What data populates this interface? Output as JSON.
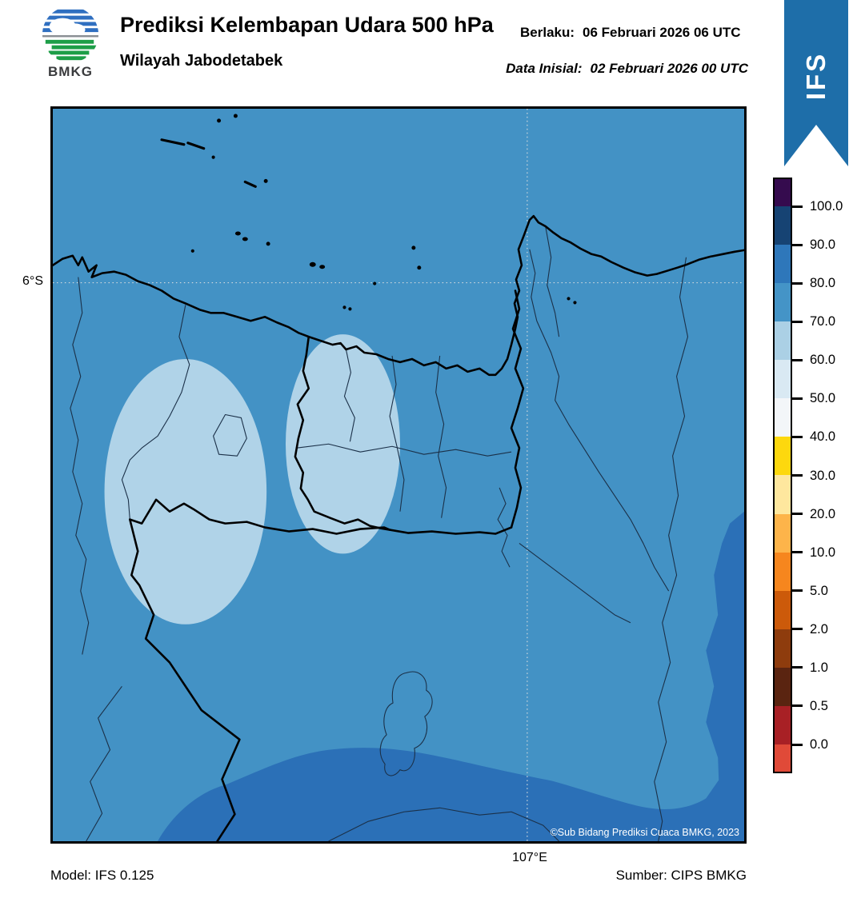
{
  "header": {
    "logo_label": "BMKG",
    "title": "Prediksi Kelembapan Udara 500 hPa",
    "subtitle": "Wilayah Jabodetabek",
    "valid_label": "Berlaku:",
    "valid_value": "06 Februari 2026 06 UTC",
    "init_label": "Data Inisial:",
    "init_value": "02 Februari 2026 00 UTC",
    "model_badge": "IFS"
  },
  "map": {
    "lat_tick_label": "6°S",
    "lon_tick_label": "107°E",
    "copyright": "©Sub Bidang Prediksi Cuaca BMKG, 2023"
  },
  "colorbar": {
    "tick_labels_top_to_bottom": [
      "100.0",
      "90.0",
      "80.0",
      "70.0",
      "60.0",
      "50.0",
      "40.0",
      "30.0",
      "20.0",
      "10.0",
      "5.0",
      "2.0",
      "1.0",
      "0.5",
      "0.0"
    ],
    "segment_colors_top_to_bottom": [
      "#350b4e",
      "#164373",
      "#2e77ba",
      "#4494c7",
      "#abd0e5",
      "#d9e9f3",
      "#f3f6f9",
      "#fdd80e",
      "#fee79e",
      "#fdb44a",
      "#f6861e",
      "#cc5a0a",
      "#8e3c0d",
      "#5a2410",
      "#a82025",
      "#e04a38"
    ]
  },
  "footer": {
    "model_text": "Model: IFS 0.125",
    "source_text": "Sumber: CIPS BMKG"
  },
  "colors": {
    "map_background_70_80": "#4392c5",
    "humidity_60_70_patch": "#b0d3e8",
    "humidity_80_90_band": "#2b70b7",
    "ribbon_blue": "#1e6ea9",
    "boundary_thick": "#000000",
    "boundary_thin": "#1b3048",
    "gridline_dotted": "#d4dade"
  }
}
